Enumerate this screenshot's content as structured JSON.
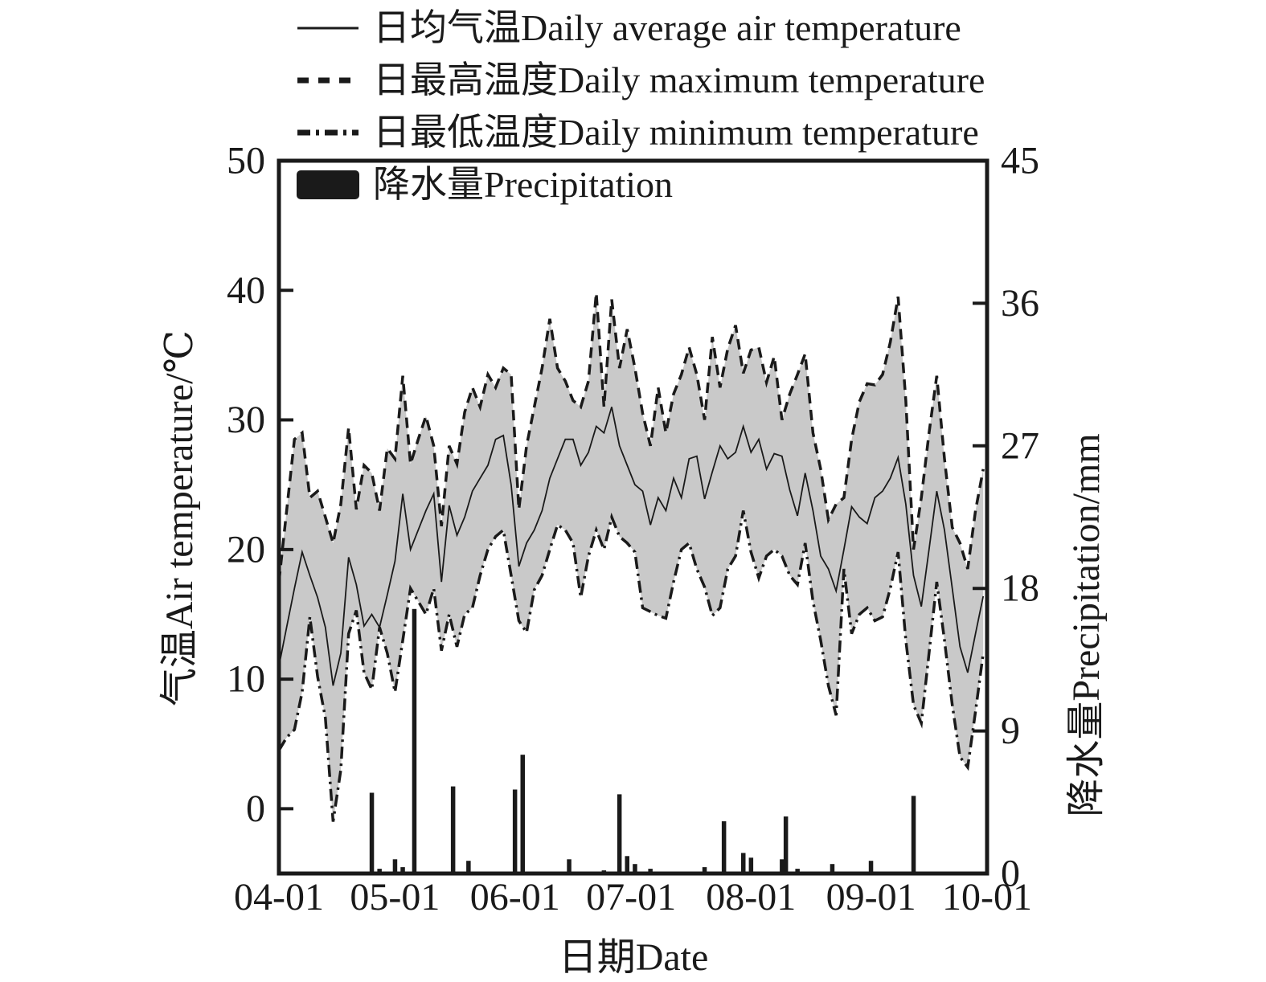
{
  "figure": {
    "background": "#ffffff",
    "ink_color": "#1a1a1a",
    "band_fill": "#c9c9c9"
  },
  "legend": {
    "items": [
      {
        "label": "日均气温Daily average air temperature",
        "marker": "solid-line"
      },
      {
        "label": "日最高温度Daily maximum temperature",
        "marker": "dashed-line"
      },
      {
        "label": "日最低温度Daily minimum temperature",
        "marker": "dash-dot-line"
      },
      {
        "label": "降水量Precipitation",
        "marker": "filled-bar"
      }
    ]
  },
  "chart_data": {
    "type": "line+bar",
    "title": "",
    "x_axis": {
      "label": "日期Date",
      "tick_labels": [
        "04-01",
        "05-01",
        "06-01",
        "07-01",
        "08-01",
        "09-01",
        "10-01"
      ],
      "tick_days": [
        0,
        30,
        61,
        91,
        122,
        153,
        183
      ],
      "total_days": 183,
      "grid": false
    },
    "left_axis": {
      "label": "气温Air temperature/℃",
      "tick_values": [
        0,
        10,
        20,
        30,
        40,
        50
      ],
      "tick_labels": [
        "0",
        "10",
        "20",
        "30",
        "40",
        "50"
      ],
      "range": [
        -5,
        50
      ]
    },
    "right_axis": {
      "label": "降水量Precipitation/mm",
      "tick_values": [
        0,
        9,
        18,
        27,
        36,
        45
      ],
      "tick_labels": [
        "0",
        "9",
        "18",
        "27",
        "36",
        "45"
      ],
      "range": [
        0,
        45
      ]
    },
    "legend_position": "top-left",
    "temperature_days": [
      0,
      2,
      4,
      6,
      8,
      10,
      12,
      14,
      16,
      18,
      20,
      22,
      24,
      26,
      28,
      30,
      32,
      34,
      36,
      38,
      40,
      42,
      44,
      46,
      48,
      50,
      52,
      54,
      56,
      58,
      60,
      62,
      64,
      66,
      68,
      70,
      72,
      74,
      76,
      78,
      80,
      82,
      84,
      86,
      88,
      90,
      92,
      94,
      96,
      98,
      100,
      102,
      104,
      106,
      108,
      110,
      112,
      114,
      116,
      118,
      120,
      122,
      124,
      126,
      128,
      130,
      132,
      134,
      136,
      138,
      140,
      142,
      144,
      146,
      148,
      150,
      152,
      154,
      156,
      158,
      160,
      162,
      164,
      166,
      168,
      170,
      172,
      174,
      176,
      178,
      180,
      182
    ],
    "series": [
      {
        "name": "Daily maximum temperature",
        "style": "dashed",
        "unit": "°C",
        "values": [
          17.5,
          23,
          28.5,
          29,
          24,
          24.5,
          22.5,
          20.5,
          23.5,
          29.4,
          23.1,
          26.5,
          25.9,
          23,
          27.8,
          27,
          33.4,
          26.6,
          28.5,
          30.3,
          28,
          21.8,
          28,
          26.6,
          30.6,
          32.5,
          31,
          33.5,
          32.5,
          34,
          33.5,
          23.1,
          28,
          31,
          34,
          37.8,
          34,
          33,
          31.5,
          31,
          33,
          39.8,
          31,
          39.3,
          34,
          37,
          34,
          30.5,
          28,
          32.5,
          29,
          32,
          33.5,
          35.6,
          33.5,
          30,
          36.4,
          32.5,
          35.5,
          37.3,
          33.6,
          35.4,
          35.6,
          32.9,
          34.9,
          30,
          32,
          33.5,
          35.1,
          29,
          26.2,
          22.3,
          23.5,
          24,
          28.5,
          31.4,
          32.8,
          32.7,
          33.5,
          36,
          39.5,
          31.5,
          20,
          24,
          29,
          33.4,
          27,
          21.7,
          20.5,
          18.5,
          23,
          26.2
        ]
      },
      {
        "name": "Daily average air temperature",
        "style": "solid",
        "unit": "°C",
        "values": [
          11,
          14,
          17,
          19.8,
          18,
          16.3,
          14,
          9.5,
          12,
          19.4,
          17.3,
          14.1,
          15,
          14,
          16.5,
          19.1,
          24.3,
          20,
          21.5,
          23,
          24.3,
          17.5,
          23.4,
          21.1,
          22.5,
          24.5,
          25.5,
          26.5,
          28.5,
          28.8,
          25,
          18.7,
          20.5,
          21.5,
          23,
          25.5,
          27,
          28.5,
          28.5,
          26.5,
          27.5,
          29.5,
          29,
          31,
          28,
          26.5,
          25,
          24.5,
          21.9,
          24,
          23,
          25.5,
          24,
          27,
          27.2,
          23.9,
          26,
          28,
          27,
          27.5,
          29.5,
          27.5,
          28.5,
          26.2,
          27.4,
          27.2,
          24.6,
          22.6,
          25.9,
          23,
          19.5,
          18.5,
          16.8,
          20,
          23.3,
          22.5,
          22,
          24,
          24.5,
          25.5,
          27.1,
          23.5,
          18,
          15.6,
          20,
          24.5,
          21.5,
          17,
          12.5,
          10.5,
          13.5,
          16.4
        ]
      },
      {
        "name": "Daily minimum temperature",
        "style": "dash-dot",
        "unit": "°C",
        "values": [
          4.5,
          5.5,
          6.1,
          9,
          14.8,
          10.2,
          7,
          -1,
          3,
          13.5,
          15.3,
          10.5,
          9.2,
          14,
          12,
          9,
          13,
          17,
          16,
          15,
          17,
          12.2,
          15,
          12.5,
          15,
          15.5,
          18,
          20,
          21,
          21.5,
          18,
          14.5,
          13.6,
          16.9,
          18,
          20,
          21.9,
          21.5,
          20.5,
          16.3,
          19.5,
          21.5,
          20,
          22.5,
          21,
          20.5,
          19.8,
          15.5,
          15.2,
          14.9,
          14.7,
          17.5,
          20,
          20.5,
          18.5,
          17.1,
          14.9,
          15.5,
          18.5,
          19.5,
          23,
          19.8,
          17.8,
          19.5,
          20,
          19.5,
          18,
          17.3,
          20.5,
          16,
          13,
          9.5,
          7.2,
          18.5,
          13.5,
          15,
          15.5,
          14.5,
          14.8,
          17,
          19.8,
          13,
          8,
          6.6,
          12,
          17.5,
          13,
          8,
          4,
          3.2,
          7.5,
          12
        ]
      }
    ],
    "precipitation": {
      "name": "Precipitation",
      "unit": "mm",
      "bars_day_mm": [
        [
          24,
          5.1
        ],
        [
          26,
          0.3
        ],
        [
          30,
          0.9
        ],
        [
          32,
          0.4
        ],
        [
          35,
          16.7
        ],
        [
          45,
          5.5
        ],
        [
          49,
          0.8
        ],
        [
          61,
          5.3
        ],
        [
          63,
          7.5
        ],
        [
          75,
          0.9
        ],
        [
          84,
          0.2
        ],
        [
          88,
          5.0
        ],
        [
          90,
          1.1
        ],
        [
          92,
          0.6
        ],
        [
          96,
          0.3
        ],
        [
          110,
          0.4
        ],
        [
          115,
          3.3
        ],
        [
          120,
          1.3
        ],
        [
          122,
          1.0
        ],
        [
          130,
          0.9
        ],
        [
          131,
          3.6
        ],
        [
          134,
          0.3
        ],
        [
          143,
          0.6
        ],
        [
          153,
          0.8
        ],
        [
          164,
          4.9
        ]
      ]
    }
  }
}
